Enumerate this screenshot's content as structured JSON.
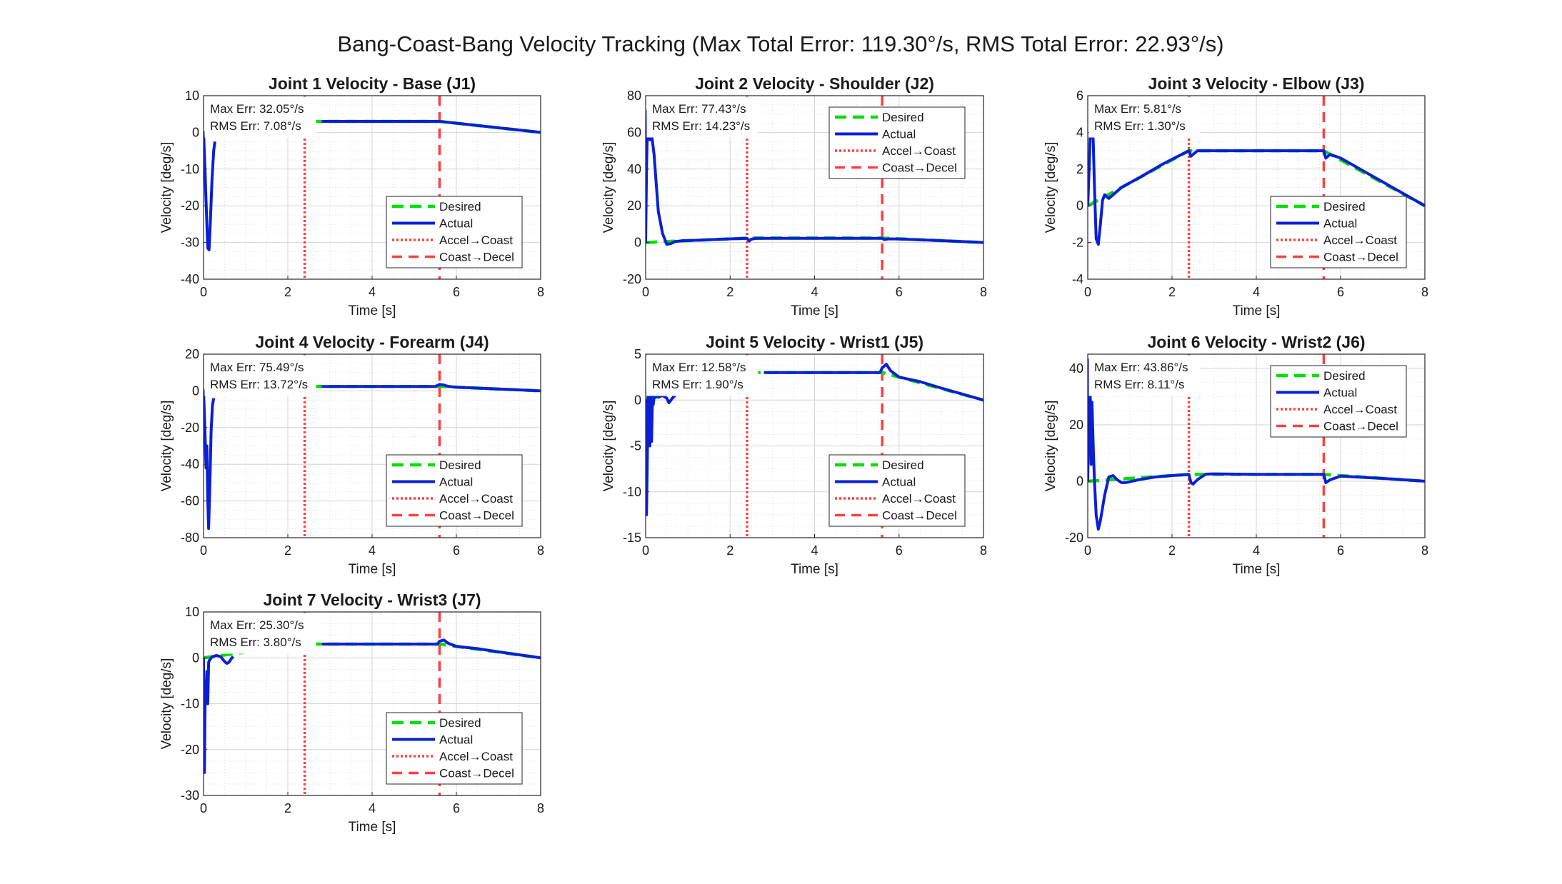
{
  "suptitle": "Bang-Coast-Bang Velocity Tracking (Max Total Error: 119.30°/s, RMS Total Error: 22.93°/s)",
  "colors": {
    "desired": "#00dd00",
    "actual": "#0a1fd6",
    "marker": "#ff4040",
    "grid": "#e2e2e2",
    "axes": "#262626"
  },
  "legend_labels": [
    "Desired",
    "Actual",
    "Accel→Coast",
    "Coast→Decel"
  ],
  "chart_data": [
    {
      "type": "line",
      "title": "Joint 1 Velocity - Base (J1)",
      "xlabel": "Time [s]",
      "ylabel": "Velocity [deg/s]",
      "xlim": [
        0,
        8
      ],
      "ylim": [
        -40,
        10
      ],
      "xticks": [
        0,
        2,
        4,
        6,
        8
      ],
      "yticks": [
        -40,
        -30,
        -20,
        -10,
        0,
        10
      ],
      "legend": "bottom-right",
      "grid": true,
      "annotations": [
        "Max Err: 32.05°/s",
        "RMS Err: 7.08°/s"
      ],
      "markers": {
        "accel_to_coast": 2.4,
        "coast_to_decel": 5.6
      },
      "series": [
        {
          "name": "Desired",
          "x": [
            0,
            0.3,
            1.0,
            2.0,
            2.4,
            5.6,
            8.0
          ],
          "y": [
            0,
            0.37,
            1.25,
            2.5,
            3.0,
            3.0,
            0
          ]
        },
        {
          "name": "Actual",
          "x": [
            0,
            0.03,
            0.07,
            0.1,
            0.13,
            0.16,
            0.2,
            0.24,
            0.27
          ],
          "y": [
            0,
            -9,
            -22,
            -31.5,
            -32,
            -25,
            -13,
            -5,
            -2.5
          ]
        },
        {
          "name": "Actual",
          "x": [
            2.8,
            5.6,
            8.0
          ],
          "y": [
            3.0,
            3.0,
            0
          ]
        }
      ]
    },
    {
      "type": "line",
      "title": "Joint 2 Velocity - Shoulder (J2)",
      "xlabel": "Time [s]",
      "ylabel": "Velocity [deg/s]",
      "xlim": [
        0,
        8
      ],
      "ylim": [
        -20,
        80
      ],
      "xticks": [
        0,
        2,
        4,
        6,
        8
      ],
      "yticks": [
        -20,
        0,
        20,
        40,
        60,
        80
      ],
      "legend": "top-right",
      "grid": true,
      "annotations": [
        "Max Err: 77.43°/s",
        "RMS Err: 14.23°/s"
      ],
      "markers": {
        "accel_to_coast": 2.4,
        "coast_to_decel": 5.6
      },
      "series": [
        {
          "name": "Desired",
          "x": [
            0,
            0.5,
            1.0,
            2.0,
            2.4,
            5.6,
            8.0
          ],
          "y": [
            0,
            0.5,
            1.0,
            2.0,
            2.4,
            2.4,
            0
          ]
        },
        {
          "name": "Actual",
          "x": [
            0,
            0.02,
            0.05,
            0.08,
            0.1,
            0.12,
            0.15,
            0.2,
            0.25,
            0.3,
            0.4,
            0.5,
            0.6,
            0.7,
            0.9,
            1.2,
            1.6,
            2.0,
            2.4,
            2.45,
            2.5,
            2.6,
            3.0,
            4.0,
            5.6,
            5.65,
            5.75,
            6.0,
            7.0,
            8.0
          ],
          "y": [
            0,
            40,
            72,
            60,
            56,
            56,
            57,
            48,
            32,
            17,
            5,
            -1,
            -0.5,
            0.5,
            1,
            1.2,
            1.6,
            2.0,
            2.3,
            0.8,
            1.8,
            2.2,
            2.3,
            2.3,
            2.3,
            1.6,
            2.0,
            1.9,
            1.0,
            0
          ]
        }
      ]
    },
    {
      "type": "line",
      "title": "Joint 3 Velocity - Elbow (J3)",
      "xlabel": "Time [s]",
      "ylabel": "Velocity [deg/s]",
      "xlim": [
        0,
        8
      ],
      "ylim": [
        -4,
        6
      ],
      "xticks": [
        0,
        2,
        4,
        6,
        8
      ],
      "yticks": [
        -4,
        -2,
        0,
        2,
        4,
        6
      ],
      "legend": "bottom-right",
      "grid": true,
      "annotations": [
        "Max Err: 5.81°/s",
        "RMS Err: 1.30°/s"
      ],
      "markers": {
        "accel_to_coast": 2.4,
        "coast_to_decel": 5.6
      },
      "series": [
        {
          "name": "Desired",
          "x": [
            0,
            0.5,
            1.0,
            2.0,
            2.4,
            5.6,
            8.0
          ],
          "y": [
            0,
            0.62,
            1.25,
            2.5,
            3.0,
            3.0,
            0
          ]
        },
        {
          "name": "Actual",
          "x": [
            0,
            0.04,
            0.08,
            0.1,
            0.13,
            0.16,
            0.2,
            0.25,
            0.3,
            0.35,
            0.4,
            0.45,
            0.5,
            0.6,
            0.8,
            1.2,
            1.8,
            2.4,
            2.45,
            2.5,
            2.6,
            3.0,
            4.0,
            5.6,
            5.65,
            5.75,
            6.0,
            7.0,
            8.0
          ],
          "y": [
            0,
            2.5,
            5.8,
            4.5,
            3.5,
            1.0,
            -1.8,
            -2.1,
            -1.0,
            0.3,
            0.6,
            0.5,
            0.4,
            0.6,
            1.0,
            1.5,
            2.3,
            3.0,
            2.7,
            2.8,
            3.0,
            3.0,
            3.0,
            3.0,
            2.6,
            2.8,
            2.6,
            1.3,
            0
          ]
        }
      ]
    },
    {
      "type": "line",
      "title": "Joint 4 Velocity - Forearm (J4)",
      "xlabel": "Time [s]",
      "ylabel": "Velocity [deg/s]",
      "xlim": [
        0,
        8
      ],
      "ylim": [
        -80,
        20
      ],
      "xticks": [
        0,
        2,
        4,
        6,
        8
      ],
      "yticks": [
        -80,
        -60,
        -40,
        -20,
        0,
        20
      ],
      "legend": "bottom-right",
      "grid": true,
      "annotations": [
        "Max Err: 75.49°/s",
        "RMS Err: 13.72°/s"
      ],
      "markers": {
        "accel_to_coast": 2.4,
        "coast_to_decel": 5.6
      },
      "series": [
        {
          "name": "Desired",
          "x": [
            0,
            0.5,
            1.0,
            2.0,
            2.4,
            5.6,
            8.0
          ],
          "y": [
            0,
            0.5,
            1.0,
            2.0,
            2.4,
            2.4,
            0
          ]
        },
        {
          "name": "Actual",
          "x": [
            0,
            0.03,
            0.06,
            0.08,
            0.1,
            0.12,
            0.15,
            0.18,
            0.21,
            0.24
          ],
          "y": [
            0,
            -20,
            -42,
            -30,
            -60,
            -75,
            -50,
            -22,
            -8,
            -4
          ]
        },
        {
          "name": "Actual",
          "x": [
            2.8,
            4.0,
            5.5,
            5.6,
            5.7,
            5.8,
            6.0,
            7.0,
            8.0
          ],
          "y": [
            2.4,
            2.4,
            2.4,
            3.5,
            3.2,
            2.5,
            2.0,
            1.0,
            0
          ]
        }
      ]
    },
    {
      "type": "line",
      "title": "Joint 5 Velocity - Wrist1 (J5)",
      "xlabel": "Time [s]",
      "ylabel": "Velocity [deg/s]",
      "xlim": [
        0,
        8
      ],
      "ylim": [
        -15,
        5
      ],
      "xticks": [
        0,
        2,
        4,
        6,
        8
      ],
      "yticks": [
        -15,
        -10,
        -5,
        0,
        5
      ],
      "legend": "bottom-right",
      "grid": true,
      "annotations": [
        "Max Err: 12.58°/s",
        "RMS Err: 1.90°/s"
      ],
      "markers": {
        "accel_to_coast": 2.4,
        "coast_to_decel": 5.6
      },
      "series": [
        {
          "name": "Desired",
          "x": [
            0,
            0.5,
            1.0,
            2.0,
            2.4,
            5.6,
            8.0
          ],
          "y": [
            0,
            0.62,
            1.25,
            2.5,
            3.0,
            3.0,
            0
          ]
        },
        {
          "name": "Actual",
          "x": [
            0,
            0.02,
            0.04,
            0.06,
            0.08,
            0.1,
            0.12,
            0.14,
            0.16,
            0.18,
            0.2,
            0.22,
            0.25,
            0.3,
            0.4,
            0.5,
            0.55,
            0.6,
            0.65,
            0.7
          ],
          "y": [
            0,
            -12.5,
            -6,
            1.5,
            -3.5,
            -5,
            0.5,
            -4.5,
            0.3,
            -0.5,
            0.4,
            0.3,
            0.5,
            0.3,
            0.5,
            0.2,
            -0.3,
            0,
            0.3,
            0.5
          ]
        },
        {
          "name": "Actual",
          "x": [
            2.8,
            4.0,
            5.55,
            5.6,
            5.7,
            5.8,
            6.0,
            6.5,
            7.0,
            8.0
          ],
          "y": [
            3.0,
            3.0,
            3.0,
            3.5,
            3.9,
            3.2,
            2.5,
            2.0,
            1.3,
            0
          ]
        }
      ]
    },
    {
      "type": "line",
      "title": "Joint 6 Velocity - Wrist2 (J6)",
      "xlabel": "Time [s]",
      "ylabel": "Velocity [deg/s]",
      "xlim": [
        0,
        8
      ],
      "ylim": [
        -20,
        45
      ],
      "xticks": [
        0,
        2,
        4,
        6,
        8
      ],
      "yticks": [
        -20,
        0,
        20,
        40
      ],
      "legend": "top-right",
      "grid": true,
      "annotations": [
        "Max Err: 43.86°/s",
        "RMS Err: 8.11°/s"
      ],
      "markers": {
        "accel_to_coast": 2.4,
        "coast_to_decel": 5.6
      },
      "series": [
        {
          "name": "Desired",
          "x": [
            0,
            0.5,
            1.0,
            2.0,
            2.4,
            5.6,
            8.0
          ],
          "y": [
            0,
            0.5,
            1.0,
            2.0,
            2.4,
            2.4,
            0
          ]
        },
        {
          "name": "Actual",
          "x": [
            0,
            0.02,
            0.04,
            0.06,
            0.08,
            0.1,
            0.13,
            0.16,
            0.2,
            0.25,
            0.3,
            0.4,
            0.5,
            0.6,
            0.7,
            0.8,
            0.9,
            1.2,
            1.6,
            2.0,
            2.4,
            2.45,
            2.5,
            2.6,
            2.8,
            3.0,
            4.0,
            5.6,
            5.65,
            5.75,
            6.0,
            7.0,
            8.0
          ],
          "y": [
            0,
            20,
            43,
            30,
            6,
            28,
            12,
            0,
            -12,
            -17,
            -14,
            -5,
            1.5,
            2,
            0.5,
            -0.5,
            -0.5,
            0.5,
            1.5,
            2.0,
            2.4,
            -0.5,
            -1,
            0.5,
            2.5,
            2.6,
            2.4,
            2.4,
            -0.5,
            0.5,
            1.8,
            1.0,
            0
          ]
        }
      ]
    },
    {
      "type": "line",
      "title": "Joint 7 Velocity - Wrist3 (J7)",
      "xlabel": "Time [s]",
      "ylabel": "Velocity [deg/s]",
      "xlim": [
        0,
        8
      ],
      "ylim": [
        -30,
        10
      ],
      "xticks": [
        0,
        2,
        4,
        6,
        8
      ],
      "yticks": [
        -30,
        -20,
        -10,
        0,
        10
      ],
      "legend": "bottom-right",
      "grid": true,
      "annotations": [
        "Max Err: 25.30°/s",
        "RMS Err: 3.80°/s"
      ],
      "markers": {
        "accel_to_coast": 2.4,
        "coast_to_decel": 5.6
      },
      "series": [
        {
          "name": "Desired",
          "x": [
            0,
            0.5,
            1.0,
            2.0,
            2.4,
            5.6,
            8.0
          ],
          "y": [
            0,
            0.62,
            1.25,
            2.5,
            3.0,
            3.0,
            0
          ]
        },
        {
          "name": "Actual",
          "x": [
            0,
            0.02,
            0.04,
            0.06,
            0.08,
            0.1,
            0.12,
            0.14,
            0.16,
            0.2,
            0.3,
            0.4,
            0.5,
            0.55,
            0.6,
            0.65,
            0.7
          ],
          "y": [
            0,
            -25,
            -5,
            -10,
            -3,
            -10,
            -1,
            -0.5,
            -0.3,
            0.2,
            0.5,
            0.3,
            -0.8,
            -1.2,
            -1.0,
            -0.3,
            0.3
          ]
        },
        {
          "name": "Actual",
          "x": [
            2.8,
            4.0,
            5.55,
            5.6,
            5.7,
            5.8,
            6.0,
            6.5,
            7.0,
            8.0
          ],
          "y": [
            3.0,
            3.0,
            3.0,
            3.6,
            3.9,
            3.2,
            2.5,
            2.0,
            1.3,
            0
          ]
        }
      ]
    }
  ]
}
